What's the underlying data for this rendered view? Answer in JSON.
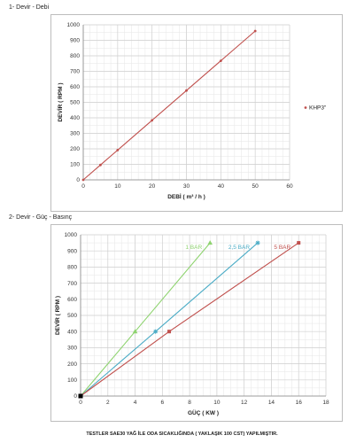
{
  "sections": [
    {
      "title": "1- Devir - Debi"
    },
    {
      "title": "2- Devir - Güç - Basınç"
    }
  ],
  "footnote": "TESTLER SAE30 YAĞ İLE ODA SICAKLIĞINDA ( YAKLAŞIK 100 CST) YAPILMIŞTIR.",
  "colors": {
    "khp3": "#c0504d",
    "bar1": "#8ed36f",
    "bar2_5": "#4bacc6",
    "bar5": "#c0504d",
    "grid": "#d0d0d0",
    "axis": "#888888"
  },
  "chart_data": [
    {
      "type": "line",
      "title": "",
      "xlabel": "DEBİ ( m³ / h )",
      "ylabel": "DEVİR ( RPM )",
      "xlim": [
        0,
        60
      ],
      "ylim": [
        0,
        1000
      ],
      "xticks": [
        "0",
        "10",
        "20",
        "30",
        "40",
        "50",
        "60"
      ],
      "yticks": [
        "0",
        "100",
        "200",
        "300",
        "400",
        "500",
        "600",
        "700",
        "800",
        "900",
        "1000"
      ],
      "grid": true,
      "legend": "right",
      "series": [
        {
          "name": "KHP3\"",
          "x": [
            0,
            5,
            10,
            20,
            30,
            40,
            50
          ],
          "y": [
            0,
            96,
            192,
            384,
            576,
            768,
            960
          ],
          "color": "#c0504d",
          "marker": "dot"
        }
      ]
    },
    {
      "type": "line",
      "title": "",
      "xlabel": "GÜÇ ( KW )",
      "ylabel": "DEVİR ( RPM )",
      "xlim": [
        0,
        18
      ],
      "ylim": [
        0,
        1000
      ],
      "xticks": [
        "0",
        "2",
        "4",
        "6",
        "8",
        "10",
        "12",
        "14",
        "16",
        "18"
      ],
      "yticks": [
        "0",
        "100",
        "200",
        "300",
        "400",
        "500",
        "600",
        "700",
        "800",
        "900",
        "1000"
      ],
      "grid": true,
      "legend": "inline-labels",
      "series": [
        {
          "name": "1 BAR",
          "x": [
            0,
            4,
            9.5
          ],
          "y": [
            0,
            400,
            950
          ],
          "color": "#8ed36f",
          "marker": "triangle"
        },
        {
          "name": "2,5 BAR",
          "x": [
            0,
            5.5,
            13
          ],
          "y": [
            0,
            400,
            950
          ],
          "color": "#4bacc6",
          "marker": "star"
        },
        {
          "name": "5 BAR",
          "x": [
            0,
            6.5,
            16
          ],
          "y": [
            0,
            400,
            950
          ],
          "color": "#c0504d",
          "marker": "square"
        }
      ],
      "origin_marker": {
        "x": 0,
        "y": 0,
        "color": "#000000"
      }
    }
  ]
}
